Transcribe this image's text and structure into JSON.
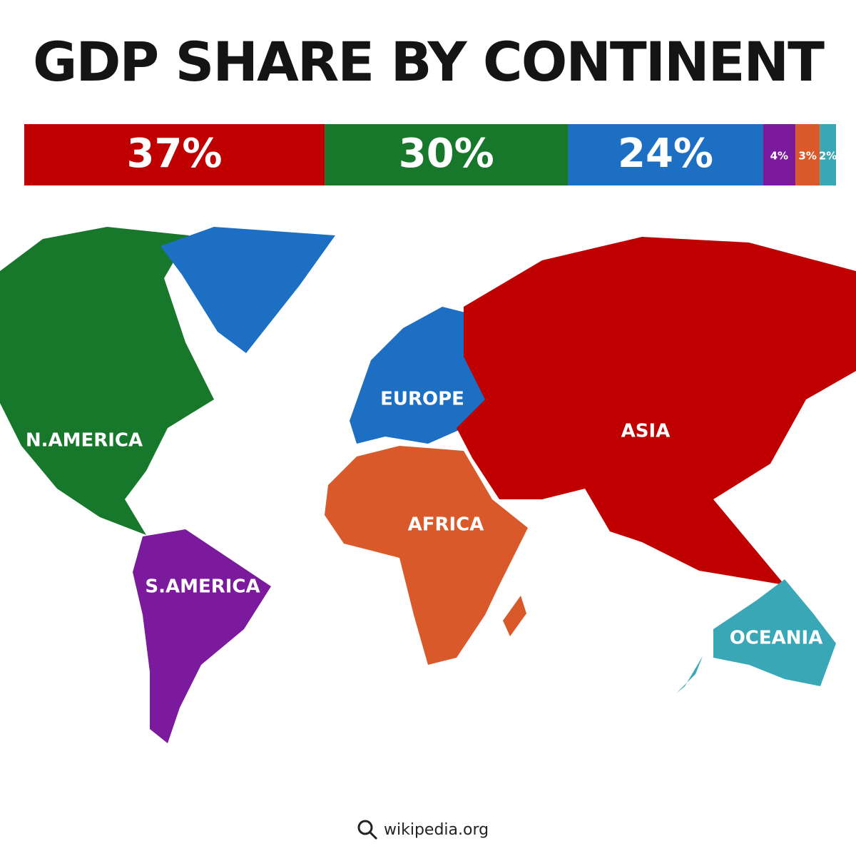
{
  "title": "GDP SHARE BY CONTINENT",
  "chart_data": {
    "type": "stacked-bar",
    "values": [
      37,
      30,
      24,
      4,
      3,
      2
    ],
    "value_labels": [
      "37%",
      "30%",
      "24%",
      "4%",
      "3%",
      "2%"
    ],
    "colors": [
      "#c00000",
      "#17782c",
      "#1d6fc4",
      "#7b1a9c",
      "#d9592a",
      "#3aa7b7"
    ]
  },
  "map": {
    "regions": [
      {
        "label": "N.AMERICA",
        "color": "#17782c"
      },
      {
        "label": "EUROPE",
        "color": "#1d6fc4"
      },
      {
        "label": "ASIA",
        "color": "#c00000"
      },
      {
        "label": "AFRICA",
        "color": "#d9592a"
      },
      {
        "label": "S.AMERICA",
        "color": "#7b1a9c"
      },
      {
        "label": "OCEANIA",
        "color": "#3aa7b7"
      }
    ]
  },
  "source": "wikipedia.org"
}
